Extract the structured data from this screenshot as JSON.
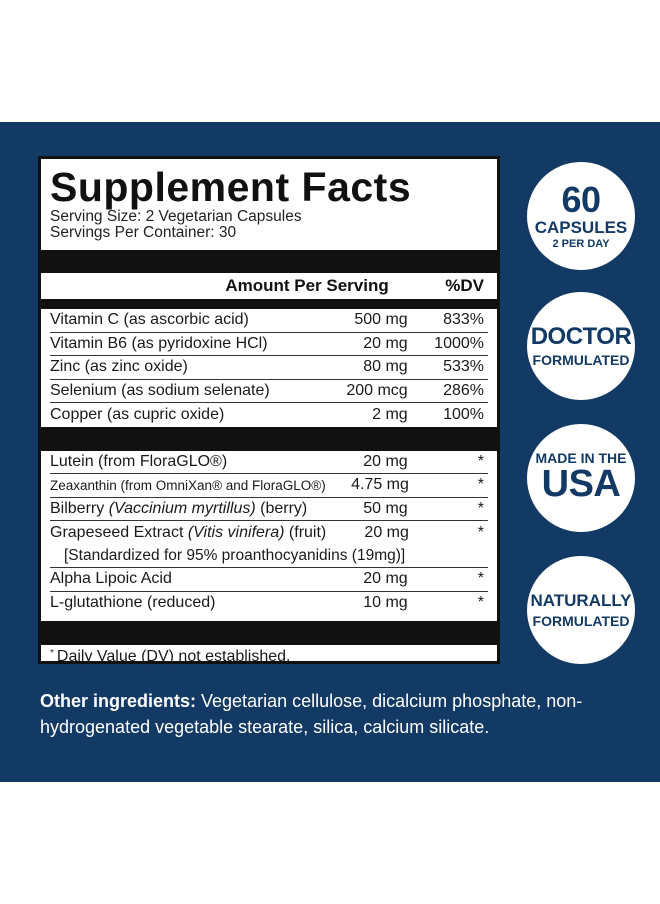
{
  "facts": {
    "title": "Supplement Facts",
    "serving_size": "Serving Size: 2 Vegetarian Capsules",
    "servings_per_container": "Servings Per Container: 30",
    "header_amount": "Amount Per Serving",
    "header_dv": "%DV",
    "vitamins": [
      {
        "name": "Vitamin C (as ascorbic acid)",
        "amount": "500 mg",
        "dv": "833%"
      },
      {
        "name": "Vitamin B6 (as pyridoxine HCl)",
        "amount": "20 mg",
        "dv": "1000%"
      },
      {
        "name": "Zinc (as zinc oxide)",
        "amount": "80 mg",
        "dv": "533%"
      },
      {
        "name": "Selenium (as sodium selenate)",
        "amount": "200 mcg",
        "dv": "286%"
      },
      {
        "name": "Copper (as cupric oxide)",
        "amount": "2 mg",
        "dv": "100%"
      }
    ],
    "others": [
      {
        "name": "Lutein (from FloraGLO®)",
        "amount": "20 mg",
        "dv": "*"
      },
      {
        "name": "Zeaxanthin (from OmniXan® and FloraGLO®)",
        "amount": "4.75 mg",
        "dv": "*"
      },
      {
        "name_pre": "Bilberry ",
        "name_italic": "(Vaccinium myrtillus)",
        "name_post": " (berry)",
        "amount": "50 mg",
        "dv": "*"
      },
      {
        "name_pre": "Grapeseed Extract ",
        "name_italic": "(Vitis vinifera)",
        "name_post": " (fruit)",
        "amount": "20 mg",
        "dv": "*"
      },
      {
        "name": "Alpha Lipoic Acid",
        "amount": "20 mg",
        "dv": "*"
      },
      {
        "name": "L-glutathione (reduced)",
        "amount": "10 mg",
        "dv": "*"
      }
    ],
    "grapeseed_note": "[Standardized for 95% proanthocyanidins (19mg)]",
    "footnote_mark": "*",
    "footnote": "Daily Value (DV) not established."
  },
  "badges": {
    "capsules_count": "60",
    "capsules_label": "CAPSULES",
    "capsules_sub": "2 PER DAY",
    "doctor_top": "DOCTOR",
    "doctor_bottom": "FORMULATED",
    "made_top": "MADE IN THE",
    "made_bottom": "USA",
    "natural_top": "NATURALLY",
    "natural_bottom": "FORMULATED"
  },
  "other_ingredients": {
    "label": "Other ingredients:",
    "text": " Vegetarian cellulose, dicalcium phosphate, non-hydrogenated vegetable stearate, silica, calcium silicate."
  },
  "colors": {
    "band": "#123a65",
    "text_dark": "#111111",
    "white": "#ffffff"
  }
}
